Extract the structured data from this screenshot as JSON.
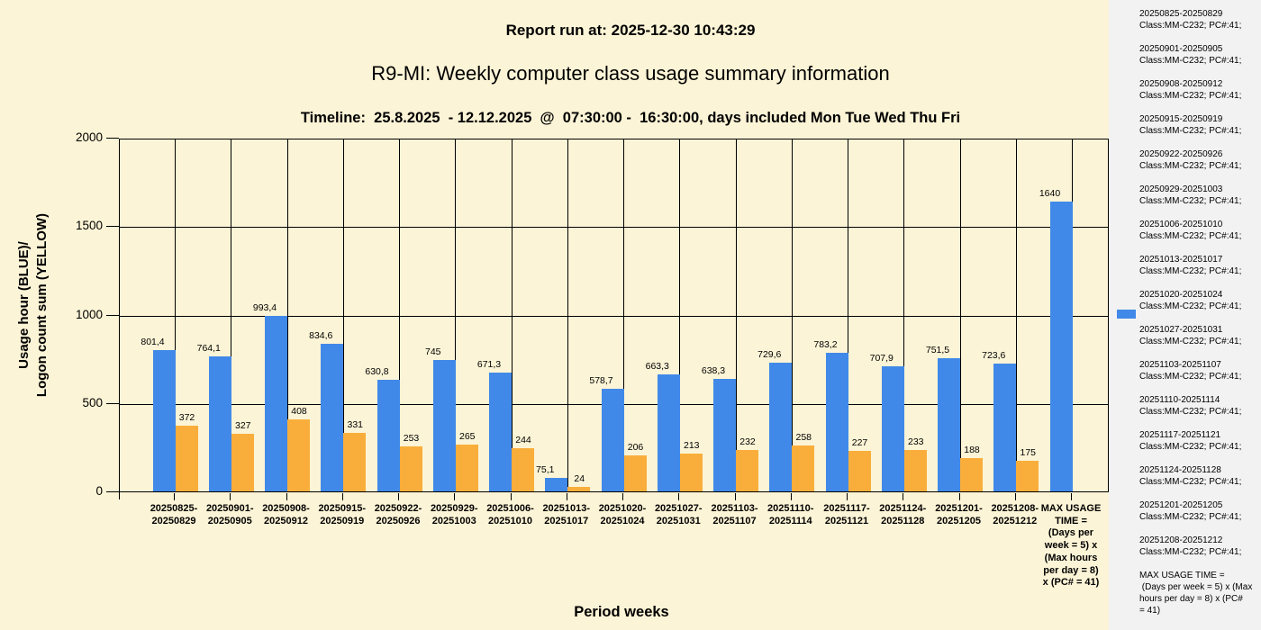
{
  "header": {
    "report_run": "Report run at: 2025-12-30 10:43:29",
    "title": "R9-MI: Weekly computer class usage summary information",
    "subtitle": "Timeline:  25.8.2025  - 12.12.2025  @  07:30:00 -  16:30:00, days included Mon Tue Wed Thu Fri"
  },
  "chart_data": {
    "type": "bar",
    "title": "R9-MI: Weekly computer class usage summary information",
    "subtitle": "Timeline:  25.8.2025  - 12.12.2025  @  07:30:00 -  16:30:00, days included Mon Tue Wed Thu Fri",
    "xlabel": "Period weeks",
    "ylabel_lines": [
      "Usage hour (BLUE)/",
      "Logon count sum (YELLOW)"
    ],
    "ylim": [
      0,
      2000
    ],
    "yticks": [
      0,
      500,
      1000,
      1500,
      2000
    ],
    "grid": true,
    "legend_position": "right",
    "colors": {
      "usage": "#4189e8",
      "logon": "#f9ae3b",
      "background": "#fcf4d6",
      "legend_background": "#f2f2f2",
      "grid": "#000000"
    },
    "series": [
      {
        "name": "Usage hour (BLUE)",
        "color": "#4189e8",
        "values": [
          801.4,
          764.1,
          993.4,
          834.6,
          630.8,
          745,
          671.3,
          75.1,
          578.7,
          663.3,
          638.3,
          729.6,
          783.2,
          707.9,
          751.5,
          723.6,
          1640
        ]
      },
      {
        "name": "Logon count sum (YELLOW)",
        "color": "#f9ae3b",
        "values": [
          372,
          327,
          408,
          331,
          253,
          265,
          244,
          24,
          206,
          213,
          232,
          258,
          227,
          233,
          188,
          175,
          null
        ]
      }
    ],
    "categories": [
      {
        "x_label_lines": [
          "20250825-",
          "20250829"
        ],
        "usage": 801.4,
        "usage_label": "801,4",
        "logon": 372,
        "logon_label": "372"
      },
      {
        "x_label_lines": [
          "20250901-",
          "20250905"
        ],
        "usage": 764.1,
        "usage_label": "764,1",
        "logon": 327,
        "logon_label": "327"
      },
      {
        "x_label_lines": [
          "20250908-",
          "20250912"
        ],
        "usage": 993.4,
        "usage_label": "993,4",
        "logon": 408,
        "logon_label": "408"
      },
      {
        "x_label_lines": [
          "20250915-",
          "20250919"
        ],
        "usage": 834.6,
        "usage_label": "834,6",
        "logon": 331,
        "logon_label": "331"
      },
      {
        "x_label_lines": [
          "20250922-",
          "20250926"
        ],
        "usage": 630.8,
        "usage_label": "630,8",
        "logon": 253,
        "logon_label": "253"
      },
      {
        "x_label_lines": [
          "20250929-",
          "20251003"
        ],
        "usage": 745,
        "usage_label": "745",
        "logon": 265,
        "logon_label": "265"
      },
      {
        "x_label_lines": [
          "20251006-",
          "20251010"
        ],
        "usage": 671.3,
        "usage_label": "671,3",
        "logon": 244,
        "logon_label": "244"
      },
      {
        "x_label_lines": [
          "20251013-",
          "20251017"
        ],
        "usage": 75.1,
        "usage_label": "75,1",
        "logon": 24,
        "logon_label": "24"
      },
      {
        "x_label_lines": [
          "20251020-",
          "20251024"
        ],
        "usage": 578.7,
        "usage_label": "578,7",
        "logon": 206,
        "logon_label": "206"
      },
      {
        "x_label_lines": [
          "20251027-",
          "20251031"
        ],
        "usage": 663.3,
        "usage_label": "663,3",
        "logon": 213,
        "logon_label": "213"
      },
      {
        "x_label_lines": [
          "20251103-",
          "20251107"
        ],
        "usage": 638.3,
        "usage_label": "638,3",
        "logon": 232,
        "logon_label": "232"
      },
      {
        "x_label_lines": [
          "20251110-",
          "20251114"
        ],
        "usage": 729.6,
        "usage_label": "729,6",
        "logon": 258,
        "logon_label": "258"
      },
      {
        "x_label_lines": [
          "20251117-",
          "20251121"
        ],
        "usage": 783.2,
        "usage_label": "783,2",
        "logon": 227,
        "logon_label": "227"
      },
      {
        "x_label_lines": [
          "20251124-",
          "20251128"
        ],
        "usage": 707.9,
        "usage_label": "707,9",
        "logon": 233,
        "logon_label": "233"
      },
      {
        "x_label_lines": [
          "20251201-",
          "20251205"
        ],
        "usage": 751.5,
        "usage_label": "751,5",
        "logon": 188,
        "logon_label": "188"
      },
      {
        "x_label_lines": [
          "20251208-",
          "20251212"
        ],
        "usage": 723.6,
        "usage_label": "723,6",
        "logon": 175,
        "logon_label": "175"
      },
      {
        "x_label_lines": [
          "MAX USAGE",
          "TIME =",
          "(Days per",
          "week = 5) x",
          "(Max hours",
          "per day = 8)",
          "x (PC# = 41)"
        ],
        "usage": 1640,
        "usage_label": "1640",
        "logon": null,
        "logon_label": null
      }
    ]
  },
  "legend": {
    "marker_color": "#4189e8",
    "entries": [
      {
        "lines": [
          "20250825-20250829",
          "Class:MM-C232; PC#:41;"
        ]
      },
      {
        "lines": [
          "20250901-20250905",
          "Class:MM-C232; PC#:41;"
        ]
      },
      {
        "lines": [
          "20250908-20250912",
          "Class:MM-C232; PC#:41;"
        ]
      },
      {
        "lines": [
          "20250915-20250919",
          "Class:MM-C232; PC#:41;"
        ]
      },
      {
        "lines": [
          "20250922-20250926",
          "Class:MM-C232; PC#:41;"
        ]
      },
      {
        "lines": [
          "20250929-20251003",
          "Class:MM-C232; PC#:41;"
        ]
      },
      {
        "lines": [
          "20251006-20251010",
          "Class:MM-C232; PC#:41;"
        ]
      },
      {
        "lines": [
          "20251013-20251017",
          "Class:MM-C232; PC#:41;"
        ]
      },
      {
        "lines": [
          "20251020-20251024",
          "Class:MM-C232; PC#:41;"
        ]
      },
      {
        "lines": [
          "20251027-20251031",
          "Class:MM-C232; PC#:41;"
        ]
      },
      {
        "lines": [
          "20251103-20251107",
          "Class:MM-C232; PC#:41;"
        ]
      },
      {
        "lines": [
          "20251110-20251114",
          "Class:MM-C232; PC#:41;"
        ]
      },
      {
        "lines": [
          "20251117-20251121",
          "Class:MM-C232; PC#:41;"
        ]
      },
      {
        "lines": [
          "20251124-20251128",
          "Class:MM-C232; PC#:41;"
        ]
      },
      {
        "lines": [
          "20251201-20251205",
          "Class:MM-C232; PC#:41;"
        ]
      },
      {
        "lines": [
          "20251208-20251212",
          "Class:MM-C232; PC#:41;"
        ]
      },
      {
        "lines": [
          "MAX USAGE TIME =",
          " (Days per week = 5) x (Max",
          "hours per day = 8) x (PC#",
          "= 41)"
        ]
      }
    ]
  }
}
